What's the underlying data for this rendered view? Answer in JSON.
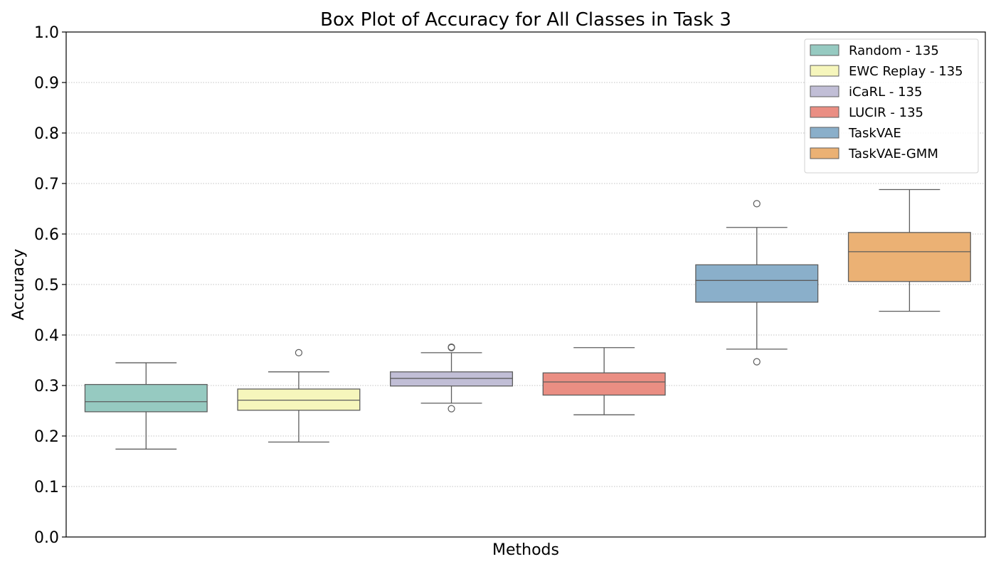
{
  "chart_data": {
    "type": "box",
    "title": "Box Plot of Accuracy for All Classes in Task 3",
    "xlabel": "Methods",
    "ylabel": "Accuracy",
    "ylim": [
      0.0,
      1.0
    ],
    "yticks": [
      "0.0",
      "0.1",
      "0.2",
      "0.3",
      "0.4",
      "0.5",
      "0.6",
      "0.7",
      "0.8",
      "0.9",
      "1.0"
    ],
    "grid": "horizontal dotted",
    "legend_position": "top-right",
    "series": [
      {
        "name": "Random - 135",
        "color": "#96cac1",
        "whisker_low": 0.174,
        "q1": 0.248,
        "median": 0.268,
        "q3": 0.302,
        "whisker_high": 0.345,
        "outliers": []
      },
      {
        "name": "EWC Replay - 135",
        "color": "#f6f6bc",
        "whisker_low": 0.188,
        "q1": 0.251,
        "median": 0.271,
        "q3": 0.293,
        "whisker_high": 0.327,
        "outliers": [
          0.365
        ]
      },
      {
        "name": "iCaRL - 135",
        "color": "#c1bed6",
        "whisker_low": 0.265,
        "q1": 0.299,
        "median": 0.314,
        "q3": 0.327,
        "whisker_high": 0.365,
        "outliers": [
          0.254,
          0.375,
          0.376
        ]
      },
      {
        "name": "LUCIR - 135",
        "color": "#ea8e83",
        "whisker_low": 0.242,
        "q1": 0.281,
        "median": 0.307,
        "q3": 0.325,
        "whisker_high": 0.375,
        "outliers": []
      },
      {
        "name": "TaskVAE",
        "color": "#8aafca",
        "whisker_low": 0.372,
        "q1": 0.465,
        "median": 0.508,
        "q3": 0.539,
        "whisker_high": 0.613,
        "outliers": [
          0.347,
          0.66
        ]
      },
      {
        "name": "TaskVAE-GMM",
        "color": "#ebb174",
        "whisker_low": 0.447,
        "q1": 0.506,
        "median": 0.565,
        "q3": 0.603,
        "whisker_high": 0.688,
        "outliers": []
      }
    ]
  }
}
